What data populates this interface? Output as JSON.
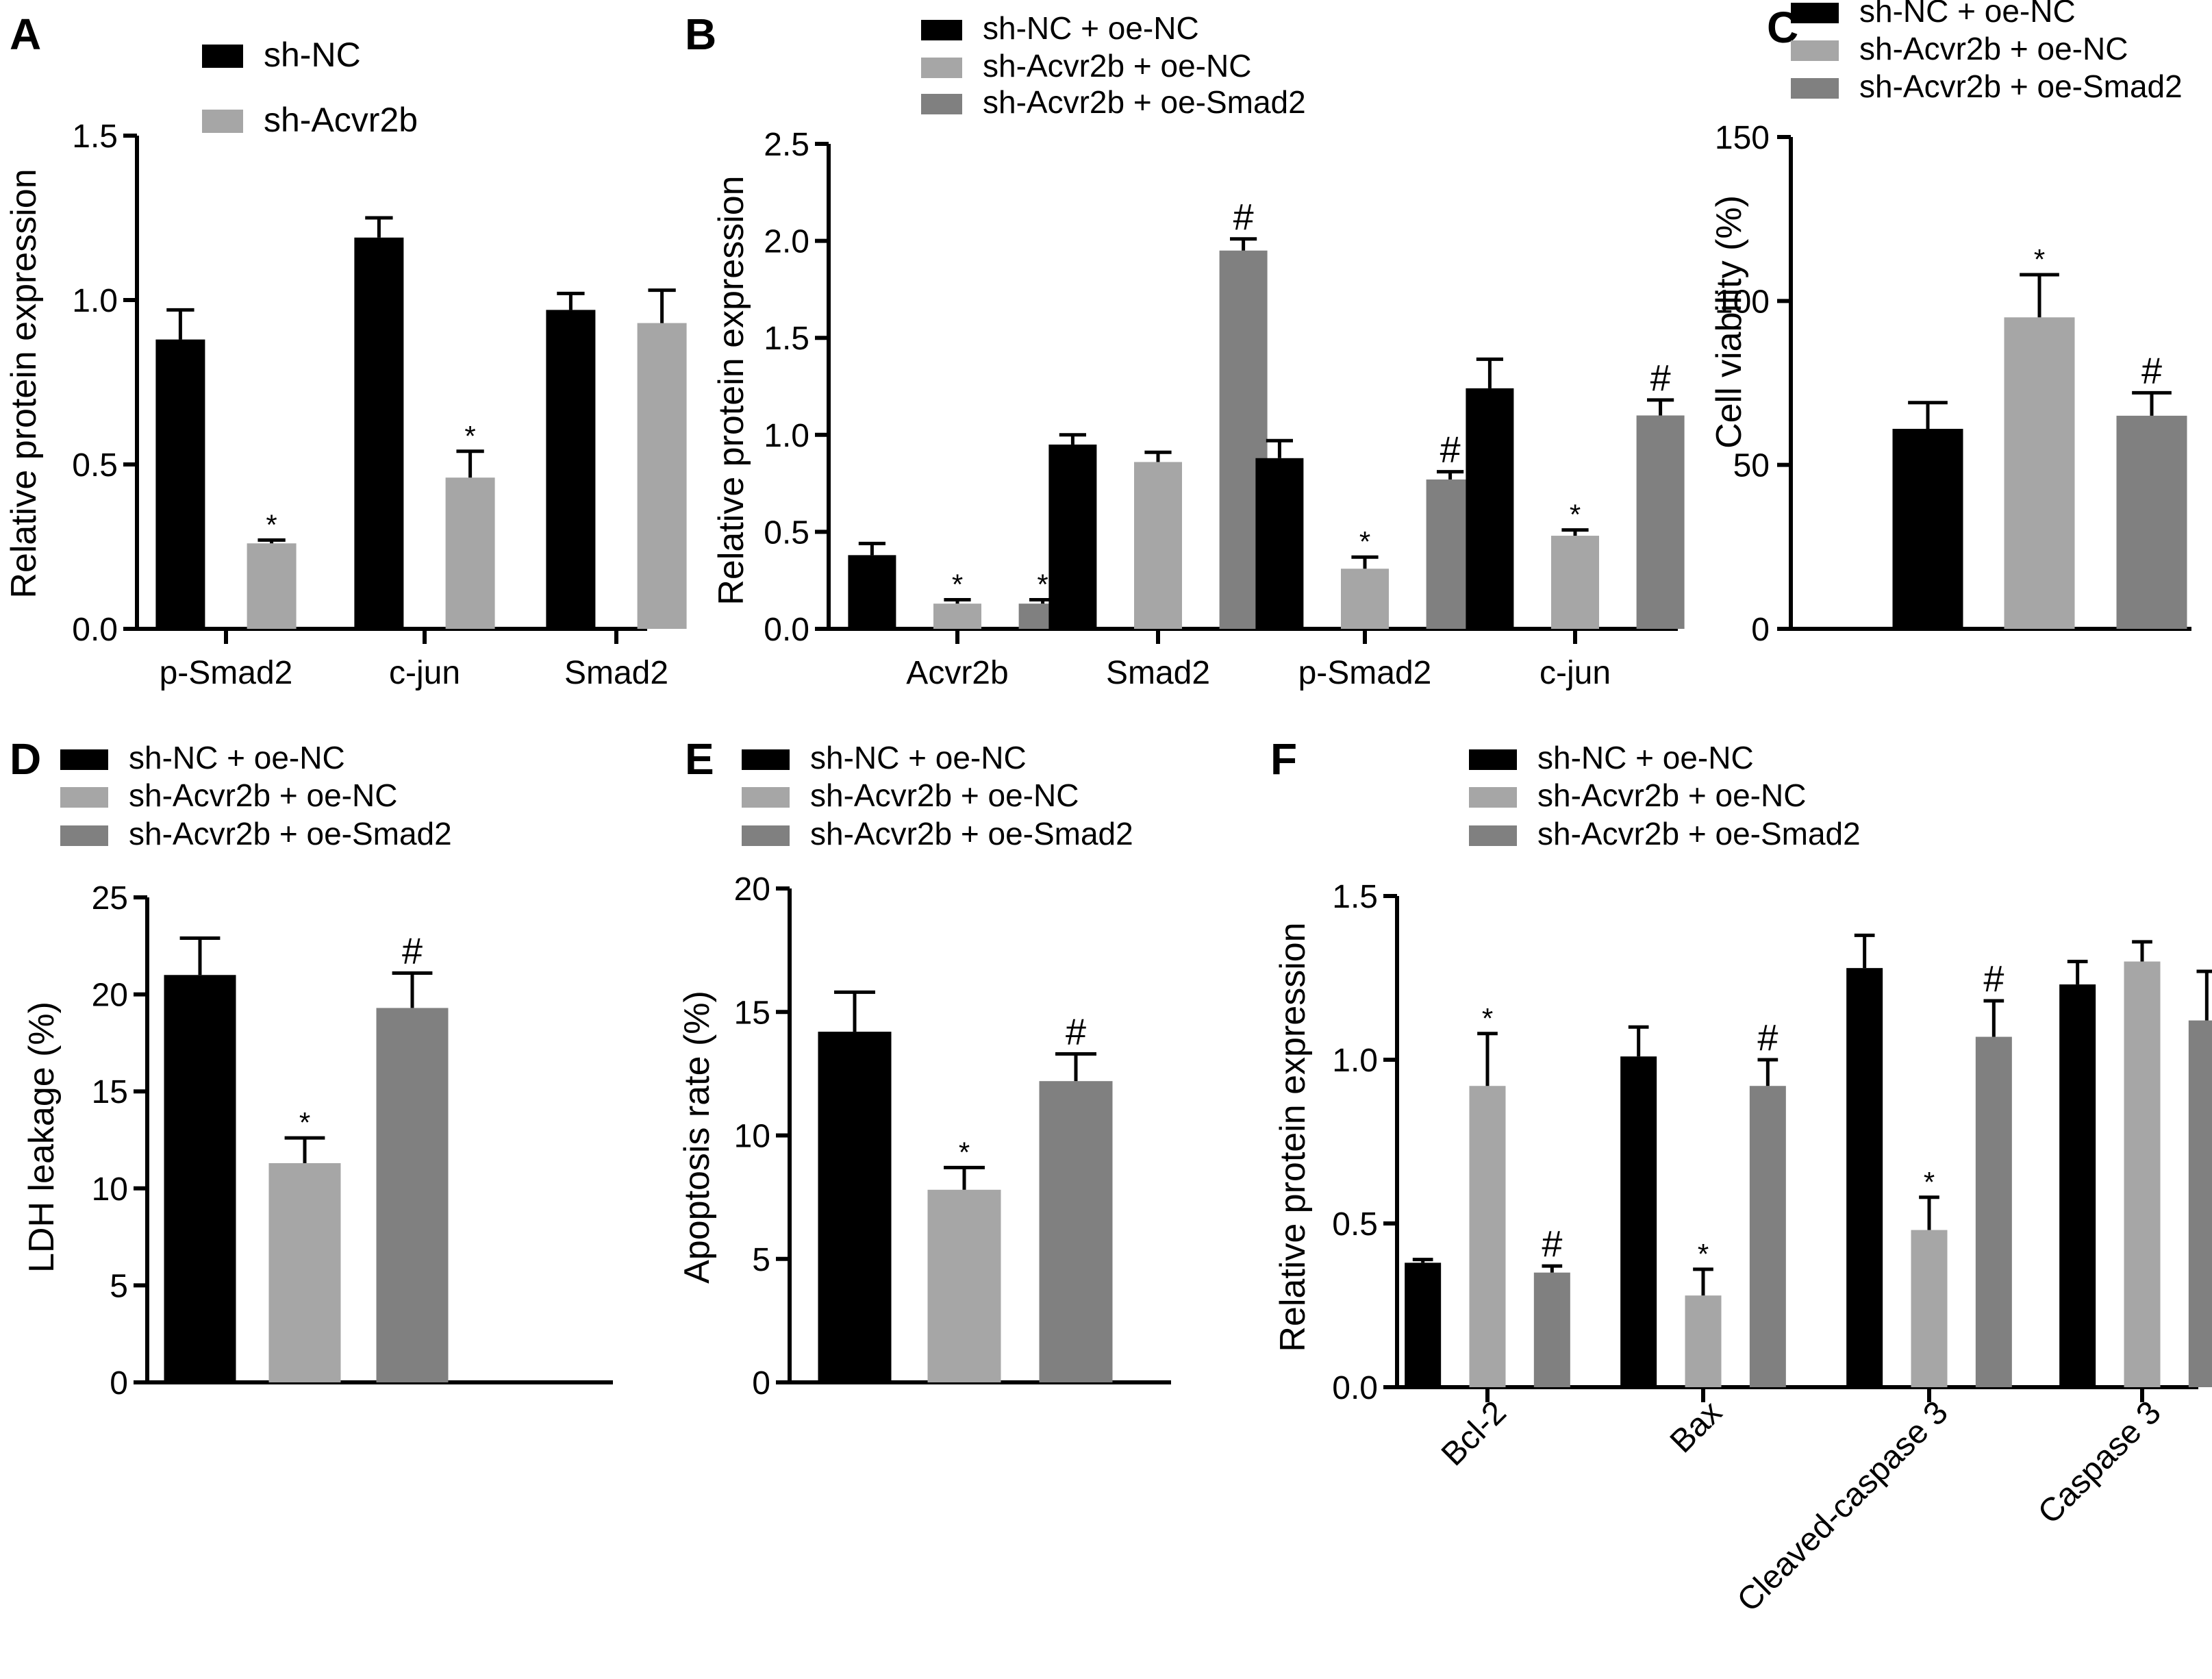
{
  "colors": {
    "black": "#000000",
    "light_gray": "#a6a6a6",
    "dark_gray": "#808080"
  },
  "chart_data": [
    {
      "panel": "A",
      "type": "bar",
      "title": "",
      "xlabel": "",
      "ylabel": "Relative protein expression",
      "ylim": [
        0,
        1.5
      ],
      "yticks": [
        "0.0",
        "0.5",
        "1.0",
        "1.5"
      ],
      "categories": [
        "p-Smad2",
        "c-jun",
        "Smad2"
      ],
      "legend": [
        "sh-NC",
        "sh-Acvr2b"
      ],
      "series": [
        {
          "name": "sh-NC",
          "color": "#000000",
          "values": [
            0.88,
            1.19,
            0.97
          ],
          "errors": [
            0.09,
            0.06,
            0.05
          ],
          "marks": [
            "",
            "",
            ""
          ]
        },
        {
          "name": "sh-Acvr2b",
          "color": "#a6a6a6",
          "values": [
            0.26,
            0.46,
            0.93
          ],
          "errors": [
            0.01,
            0.08,
            0.1
          ],
          "marks": [
            "*",
            "*",
            ""
          ]
        }
      ]
    },
    {
      "panel": "B",
      "type": "bar",
      "title": "",
      "xlabel": "",
      "ylabel": "Relative protein expression",
      "ylim": [
        0,
        2.5
      ],
      "yticks": [
        "0.0",
        "0.5",
        "1.0",
        "1.5",
        "2.0",
        "2.5"
      ],
      "categories": [
        "Acvr2b",
        "Smad2",
        "p-Smad2",
        "c-jun"
      ],
      "legend": [
        "sh-NC + oe-NC",
        "sh-Acvr2b + oe-NC",
        "sh-Acvr2b + oe-Smad2"
      ],
      "series": [
        {
          "name": "sh-NC + oe-NC",
          "color": "#000000",
          "values": [
            0.38,
            0.95,
            0.88,
            1.24
          ],
          "errors": [
            0.06,
            0.05,
            0.09,
            0.15
          ],
          "marks": [
            "",
            "",
            "",
            ""
          ]
        },
        {
          "name": "sh-Acvr2b + oe-NC",
          "color": "#a6a6a6",
          "values": [
            0.13,
            0.86,
            0.31,
            0.48
          ],
          "errors": [
            0.02,
            0.05,
            0.06,
            0.03
          ],
          "marks": [
            "*",
            "",
            "*",
            "*"
          ]
        },
        {
          "name": "sh-Acvr2b + oe-Smad2",
          "color": "#808080",
          "values": [
            0.13,
            1.95,
            0.77,
            1.1
          ],
          "errors": [
            0.02,
            0.06,
            0.04,
            0.08
          ],
          "marks": [
            "*",
            "#",
            "#",
            "#"
          ]
        }
      ]
    },
    {
      "panel": "C",
      "type": "bar",
      "title": "",
      "xlabel": "",
      "ylabel": "Cell viability (%)",
      "ylim": [
        0,
        150
      ],
      "yticks": [
        "0",
        "50",
        "100",
        "150"
      ],
      "categories": [
        "sh-NC + oe-NC",
        "sh-Acvr2b + oe-NC",
        "sh-Acvr2b + oe-Smad2"
      ],
      "legend": [
        "sh-NC + oe-NC",
        "sh-Acvr2b + oe-NC",
        "sh-Acvr2b + oe-Smad2"
      ],
      "bars": [
        {
          "name": "sh-NC + oe-NC",
          "color": "#000000",
          "value": 61,
          "error": 8,
          "mark": ""
        },
        {
          "name": "sh-Acvr2b + oe-NC",
          "color": "#a6a6a6",
          "value": 95,
          "error": 13,
          "mark": "*"
        },
        {
          "name": "sh-Acvr2b + oe-Smad2",
          "color": "#808080",
          "value": 65,
          "error": 7,
          "mark": "#"
        }
      ]
    },
    {
      "panel": "D",
      "type": "bar",
      "title": "",
      "xlabel": "",
      "ylabel": "LDH leakage (%)",
      "ylim": [
        0,
        25
      ],
      "yticks": [
        "0",
        "5",
        "10",
        "15",
        "20",
        "25"
      ],
      "categories": [
        "sh-NC + oe-NC",
        "sh-Acvr2b + oe-NC",
        "sh-Acvr2b + oe-Smad2"
      ],
      "legend": [
        "sh-NC + oe-NC",
        "sh-Acvr2b + oe-NC",
        "sh-Acvr2b + oe-Smad2"
      ],
      "bars": [
        {
          "name": "sh-NC + oe-NC",
          "color": "#000000",
          "value": 21.0,
          "error": 1.9,
          "mark": ""
        },
        {
          "name": "sh-Acvr2b + oe-NC",
          "color": "#a6a6a6",
          "value": 11.3,
          "error": 1.3,
          "mark": "*"
        },
        {
          "name": "sh-Acvr2b + oe-Smad2",
          "color": "#808080",
          "value": 19.3,
          "error": 1.8,
          "mark": "#"
        }
      ]
    },
    {
      "panel": "E",
      "type": "bar",
      "title": "",
      "xlabel": "",
      "ylabel": "Apoptosis rate (%)",
      "ylim": [
        0,
        20
      ],
      "yticks": [
        "0",
        "5",
        "10",
        "15",
        "20"
      ],
      "categories": [
        "sh-NC + oe-NC",
        "sh-Acvr2b + oe-NC",
        "sh-Acvr2b + oe-Smad2"
      ],
      "legend": [
        "sh-NC + oe-NC",
        "sh-Acvr2b + oe-NC",
        "sh-Acvr2b + oe-Smad2"
      ],
      "bars": [
        {
          "name": "sh-NC + oe-NC",
          "color": "#000000",
          "value": 14.2,
          "error": 1.6,
          "mark": ""
        },
        {
          "name": "sh-Acvr2b + oe-NC",
          "color": "#a6a6a6",
          "value": 7.8,
          "error": 0.9,
          "mark": "*"
        },
        {
          "name": "sh-Acvr2b + oe-Smad2",
          "color": "#808080",
          "value": 12.2,
          "error": 1.1,
          "mark": "#"
        }
      ]
    },
    {
      "panel": "F",
      "type": "bar",
      "title": "",
      "xlabel": "",
      "ylabel": "Relative protein expression",
      "ylim": [
        0,
        1.5
      ],
      "yticks": [
        "0.0",
        "0.5",
        "1.0",
        "1.5"
      ],
      "categories": [
        "Bcl-2",
        "Bax",
        "Cleaved-caspase 3",
        "Caspase 3"
      ],
      "legend": [
        "sh-NC + oe-NC",
        "sh-Acvr2b + oe-NC",
        "sh-Acvr2b + oe-Smad2"
      ],
      "series": [
        {
          "name": "sh-NC + oe-NC",
          "color": "#000000",
          "values": [
            0.38,
            1.01,
            1.28,
            1.23
          ],
          "errors": [
            0.01,
            0.09,
            0.1,
            0.07
          ],
          "marks": [
            "",
            "",
            "",
            ""
          ]
        },
        {
          "name": "sh-Acvr2b + oe-NC",
          "color": "#a6a6a6",
          "values": [
            0.92,
            0.28,
            0.48,
            1.3
          ],
          "errors": [
            0.16,
            0.08,
            0.1,
            0.06
          ],
          "marks": [
            "*",
            "*",
            "*",
            ""
          ]
        },
        {
          "name": "sh-Acvr2b + oe-Smad2",
          "color": "#808080",
          "values": [
            0.35,
            0.92,
            1.07,
            1.12
          ],
          "errors": [
            0.02,
            0.08,
            0.11,
            0.15
          ],
          "marks": [
            "#",
            "#",
            "#",
            ""
          ]
        }
      ]
    }
  ]
}
